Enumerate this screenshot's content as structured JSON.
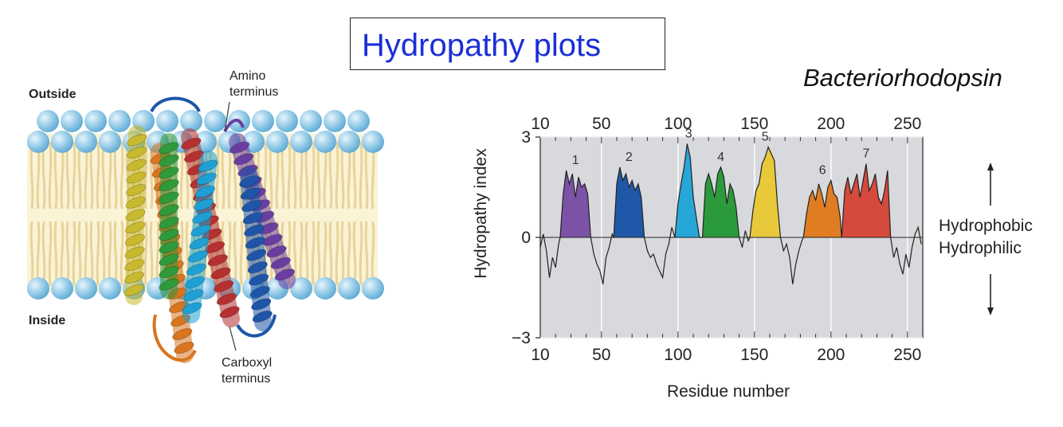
{
  "title": "Hydropathy plots",
  "protein_name": "Bacteriorhodopsin",
  "membrane_diagram": {
    "outside_label": "Outside",
    "inside_label": "Inside",
    "amino_label_line1": "Amino",
    "amino_label_line2": "terminus",
    "carboxyl_label_line1": "Carboxyl",
    "carboxyl_label_line2": "terminus",
    "helix_colors": [
      "#c9b92e",
      "#d9741f",
      "#2f9a3a",
      "#b53030",
      "#1fa0d4",
      "#6a3ea0",
      "#1e55a8"
    ]
  },
  "plot": {
    "ylabel": "Hydropathy index",
    "xlabel": "Residue number",
    "x_ticks": [
      "10",
      "50",
      "100",
      "150",
      "200",
      "250"
    ],
    "y_ticks": [
      "3",
      "0",
      "−3"
    ],
    "hydrophobic_label": "Hydrophobic",
    "hydrophilic_label": "Hydrophilic",
    "background_color": "#d8d9dc"
  },
  "chart_data": {
    "type": "area",
    "x_range": [
      10,
      260
    ],
    "y_range": [
      -3,
      3
    ],
    "grid": true,
    "xlabel": "Residue number",
    "ylabel": "Hydropathy index",
    "peaks": [
      {
        "label": "1",
        "x_start": 23,
        "x_end": 43,
        "peak": 2.0,
        "color": "#7b52a6"
      },
      {
        "label": "2",
        "x_start": 58,
        "x_end": 78,
        "peak": 2.1,
        "color": "#1f58a8"
      },
      {
        "label": "3",
        "x_start": 98,
        "x_end": 116,
        "peak": 2.8,
        "color": "#27a6d8"
      },
      {
        "label": "4",
        "x_start": 116,
        "x_end": 140,
        "peak": 2.1,
        "color": "#2b9a3c"
      },
      {
        "label": "5",
        "x_start": 147,
        "x_end": 167,
        "peak": 2.7,
        "color": "#e8c93a"
      },
      {
        "label": "6",
        "x_start": 182,
        "x_end": 207,
        "peak": 1.7,
        "color": "#e07d22"
      },
      {
        "label": "7",
        "x_start": 207,
        "x_end": 239,
        "peak": 2.2,
        "color": "#d44a3c"
      }
    ],
    "series": [
      {
        "x": [
          10,
          12,
          14,
          16,
          18,
          20,
          22,
          23,
          25,
          27,
          29,
          31,
          33,
          35,
          37,
          39,
          41,
          43,
          45,
          47,
          49,
          51,
          53,
          55,
          57,
          58,
          60,
          62,
          64,
          66,
          68,
          70,
          72,
          74,
          76,
          78,
          80,
          82,
          84,
          86,
          88,
          90,
          92,
          94,
          96,
          98,
          100,
          102,
          104,
          106,
          108,
          110,
          112,
          114,
          116,
          118,
          120,
          122,
          124,
          126,
          128,
          130,
          132,
          134,
          136,
          138,
          140,
          142,
          144,
          146,
          147,
          149,
          151,
          153,
          155,
          157,
          159,
          161,
          163,
          165,
          167,
          169,
          171,
          173,
          175,
          177,
          179,
          181,
          182,
          184,
          186,
          188,
          190,
          192,
          194,
          196,
          198,
          200,
          202,
          204,
          206,
          207,
          209,
          211,
          213,
          215,
          217,
          219,
          221,
          223,
          225,
          227,
          229,
          231,
          233,
          235,
          237,
          239,
          241,
          243,
          245,
          247,
          249,
          251,
          253,
          255,
          257,
          259
        ],
        "y": [
          -0.3,
          0.1,
          -0.4,
          -1.2,
          -0.6,
          -0.9,
          -0.2,
          0.0,
          1.3,
          2.0,
          1.6,
          1.9,
          1.2,
          1.8,
          1.5,
          1.6,
          1.3,
          0.0,
          -0.5,
          -0.8,
          -1.0,
          -1.4,
          -0.6,
          -0.3,
          0.1,
          0.0,
          1.6,
          2.1,
          1.7,
          1.9,
          1.5,
          1.7,
          1.4,
          1.6,
          1.2,
          0.0,
          -0.4,
          -0.6,
          -0.5,
          -0.8,
          -1.0,
          -1.2,
          -0.5,
          -0.2,
          0.3,
          0.0,
          1.0,
          1.6,
          2.1,
          2.8,
          2.4,
          1.2,
          0.6,
          0.0,
          0.0,
          1.6,
          1.9,
          1.6,
          1.2,
          1.9,
          2.1,
          1.8,
          1.0,
          1.6,
          1.4,
          0.9,
          0.0,
          -0.3,
          0.2,
          -0.1,
          0.0,
          0.8,
          1.4,
          1.6,
          2.2,
          2.4,
          2.7,
          2.5,
          2.3,
          1.0,
          0.0,
          -0.4,
          -0.2,
          -0.6,
          -1.4,
          -0.8,
          -0.4,
          -0.1,
          0.0,
          0.7,
          1.2,
          1.4,
          1.1,
          1.6,
          1.3,
          0.9,
          1.5,
          1.7,
          1.3,
          1.2,
          0.6,
          0.0,
          1.4,
          1.8,
          1.3,
          1.6,
          1.9,
          1.2,
          1.7,
          2.2,
          1.4,
          1.6,
          1.9,
          1.2,
          1.0,
          1.4,
          2.0,
          0.0,
          -0.6,
          -0.3,
          -0.8,
          -1.1,
          -0.5,
          -0.9,
          -0.3,
          0.1,
          0.3,
          -0.2
        ]
      }
    ]
  }
}
